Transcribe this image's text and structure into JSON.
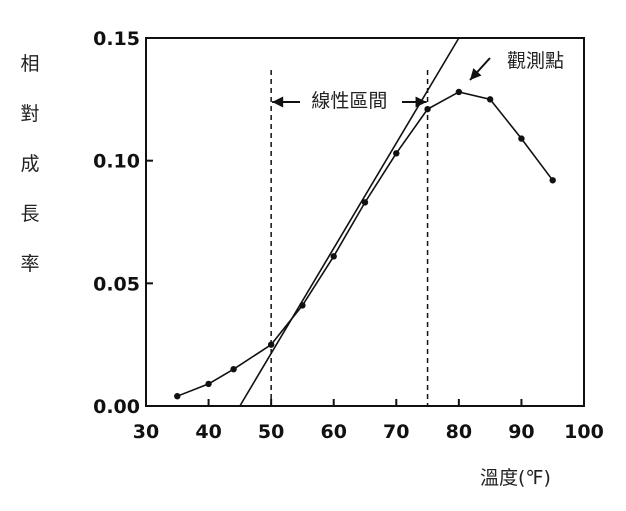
{
  "chart_data": {
    "type": "line",
    "ylabel": "相對成長率",
    "xlabel": "溫度(℉)",
    "xlim": [
      30,
      100
    ],
    "ylim": [
      0,
      0.15
    ],
    "x_ticks": [
      "30",
      "40",
      "50",
      "60",
      "70",
      "80",
      "90",
      "100"
    ],
    "y_ticks": [
      "0.00",
      "0.05",
      "0.10",
      "0.15"
    ],
    "grid": false,
    "series": [
      {
        "x": [
          35,
          40,
          44,
          50,
          55,
          60,
          65,
          70,
          75,
          80,
          85,
          90,
          95
        ],
        "y": [
          0.004,
          0.009,
          0.015,
          0.025,
          0.041,
          0.061,
          0.083,
          0.103,
          0.121,
          0.128,
          0.125,
          0.109,
          0.092
        ]
      }
    ],
    "fit_line": {
      "x": [
        45,
        80
      ],
      "y": [
        0.0,
        0.15
      ]
    },
    "vlines": [
      50,
      75
    ],
    "annotations": {
      "linear_range": "線性區間",
      "observed_points": "觀測點"
    }
  }
}
